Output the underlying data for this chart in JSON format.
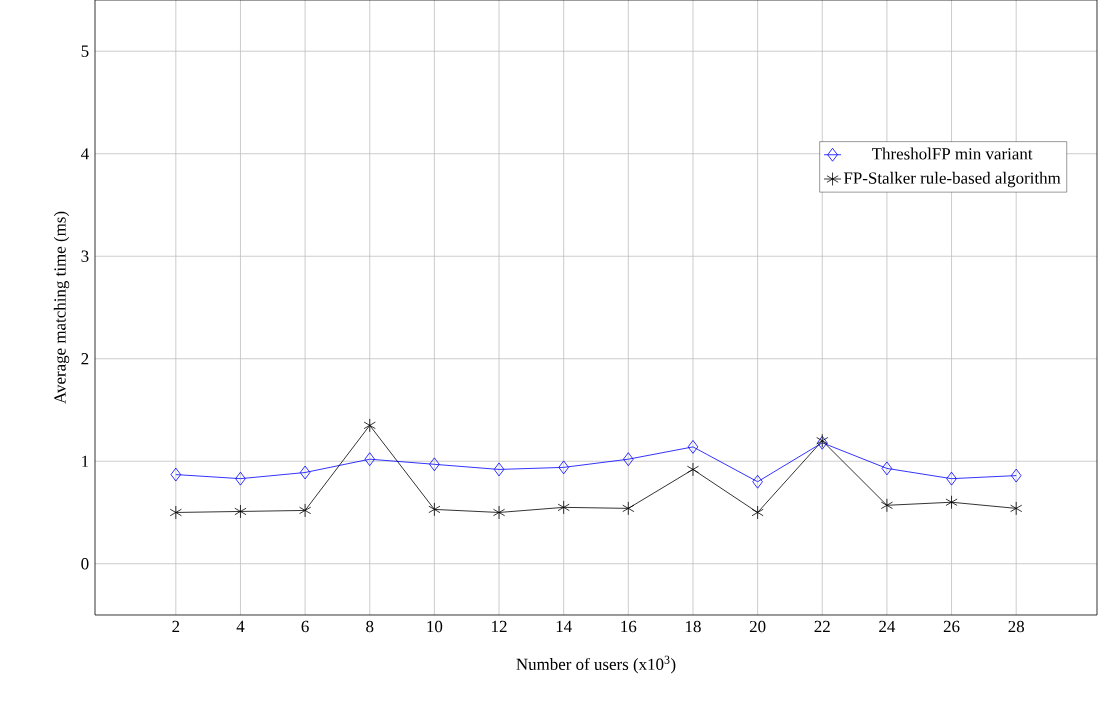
{
  "chart_data": {
    "type": "line",
    "xlabel": "Number of users (x10$^{3}$)",
    "ylabel": "Average matching time (ms)",
    "x": [
      2,
      4,
      6,
      8,
      10,
      12,
      14,
      16,
      18,
      20,
      22,
      24,
      26,
      28
    ],
    "series": [
      {
        "name": "ThresholFP min variant",
        "color": "#0000ff",
        "marker": "diamond",
        "values": [
          0.87,
          0.83,
          0.89,
          1.02,
          0.97,
          0.92,
          0.94,
          1.02,
          1.14,
          0.8,
          1.18,
          0.93,
          0.83,
          0.86
        ]
      },
      {
        "name": "FP-Stalker rule-based algorithm",
        "color": "#000000",
        "marker": "cross",
        "values": [
          0.5,
          0.51,
          0.52,
          1.35,
          0.53,
          0.5,
          0.55,
          0.54,
          0.92,
          0.5,
          1.2,
          0.57,
          0.6,
          0.54
        ]
      }
    ],
    "xlim": [
      -0.5,
      30.5
    ],
    "ylim": [
      -0.5,
      5.5
    ],
    "xticks": [
      2,
      4,
      6,
      8,
      10,
      12,
      14,
      16,
      18,
      20,
      22,
      24,
      26,
      28
    ],
    "yticks": [
      0,
      1,
      2,
      3,
      4,
      5
    ],
    "grid": true,
    "legend": "top right",
    "line_style": "solid"
  }
}
